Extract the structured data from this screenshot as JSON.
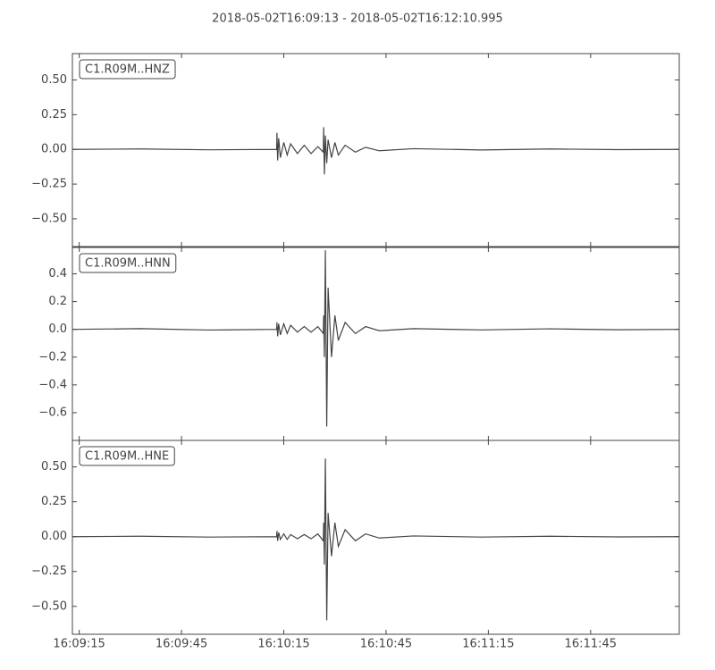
{
  "title": "2018-05-02T16:09:13  -  2018-05-02T16:12:10.995",
  "chart_data": [
    {
      "type": "line",
      "label": "C1.R09M..HNZ",
      "color": "#444444",
      "x": [
        0,
        20,
        40,
        59.9,
        60.0,
        60.2,
        60.5,
        61,
        62,
        63,
        64,
        66,
        68,
        70,
        72,
        73.6,
        73.7,
        73.9,
        74.2,
        74.6,
        75,
        76,
        77,
        78,
        80,
        83,
        86,
        90,
        100,
        120,
        140,
        160,
        177.995
      ],
      "values": [
        0,
        0.003,
        -0.003,
        0,
        0.12,
        -0.08,
        0.08,
        -0.06,
        0.05,
        -0.04,
        0.04,
        -0.03,
        0.03,
        -0.03,
        0.02,
        -0.02,
        0.16,
        -0.18,
        0.1,
        -0.1,
        0.07,
        -0.06,
        0.05,
        -0.04,
        0.03,
        -0.02,
        0.015,
        -0.01,
        0.005,
        -0.004,
        0.003,
        -0.002,
        0
      ],
      "xlim": [
        0,
        177.995
      ],
      "ylim": [
        -0.7,
        0.69
      ],
      "yticks": [
        {
          "value": -0.5,
          "label": "−0.50"
        },
        {
          "value": -0.25,
          "label": "−0.25"
        },
        {
          "value": 0,
          "label": "0.00"
        },
        {
          "value": 0.25,
          "label": "0.25"
        },
        {
          "value": 0.5,
          "label": "0.50"
        }
      ]
    },
    {
      "type": "line",
      "label": "C1.R09M..HNN",
      "color": "#444444",
      "x": [
        0,
        20,
        40,
        59.9,
        60.0,
        60.2,
        60.5,
        61,
        62,
        63,
        64,
        66,
        68,
        70,
        72,
        73.6,
        73.7,
        73.9,
        74.2,
        74.6,
        75,
        76,
        77,
        78,
        80,
        83,
        86,
        90,
        100,
        120,
        140,
        160,
        177.995
      ],
      "values": [
        0,
        0.005,
        -0.005,
        0,
        0.05,
        -0.05,
        0.04,
        -0.04,
        0.04,
        -0.03,
        0.03,
        -0.02,
        0.02,
        -0.02,
        0.02,
        -0.03,
        0.1,
        -0.2,
        0.57,
        -0.7,
        0.3,
        -0.2,
        0.1,
        -0.08,
        0.05,
        -0.03,
        0.02,
        -0.01,
        0.005,
        -0.004,
        0.004,
        -0.003,
        0
      ],
      "xlim": [
        0,
        177.995
      ],
      "ylim": [
        -0.8,
        0.59
      ],
      "yticks": [
        {
          "value": -0.6,
          "label": "−0.6"
        },
        {
          "value": -0.4,
          "label": "−0.4"
        },
        {
          "value": -0.2,
          "label": "−0.2"
        },
        {
          "value": 0,
          "label": "0.0"
        },
        0.2,
        0.4
      ]
    },
    {
      "type": "line",
      "label": "C1.R09M..HNE",
      "color": "#444444",
      "x": [
        0,
        20,
        40,
        59.9,
        60.0,
        60.2,
        60.5,
        61,
        62,
        63,
        64,
        66,
        68,
        70,
        72,
        73.6,
        73.7,
        73.9,
        74.2,
        74.6,
        75,
        76,
        77,
        78,
        80,
        83,
        86,
        90,
        100,
        120,
        140,
        160,
        177.995
      ],
      "values": [
        0,
        0.003,
        -0.003,
        0,
        0.04,
        -0.03,
        0.03,
        -0.02,
        0.02,
        -0.02,
        0.015,
        -0.015,
        0.015,
        -0.015,
        0.02,
        -0.03,
        0.1,
        -0.2,
        0.56,
        -0.6,
        0.17,
        -0.14,
        0.1,
        -0.07,
        0.05,
        -0.03,
        0.02,
        -0.01,
        0.005,
        -0.003,
        0.003,
        -0.002,
        0
      ],
      "xlim": [
        0,
        177.995
      ],
      "ylim": [
        -0.7,
        0.69
      ],
      "yticks": [
        {
          "value": -0.5,
          "label": "−0.50"
        },
        {
          "value": -0.25,
          "label": "−0.25"
        },
        {
          "value": 0,
          "label": "0.00"
        },
        {
          "value": 0.25,
          "label": "0.25"
        },
        {
          "value": 0.5,
          "label": "0.50"
        }
      ],
      "xticks": [
        {
          "value": 2,
          "label": "16:09:15"
        },
        {
          "value": 32,
          "label": "16:09:45"
        },
        {
          "value": 62,
          "label": "16:10:15"
        },
        {
          "value": 92,
          "label": "16:10:45"
        },
        {
          "value": 122,
          "label": "16:11:15"
        },
        {
          "value": 152,
          "label": "16:11:45"
        }
      ]
    }
  ]
}
